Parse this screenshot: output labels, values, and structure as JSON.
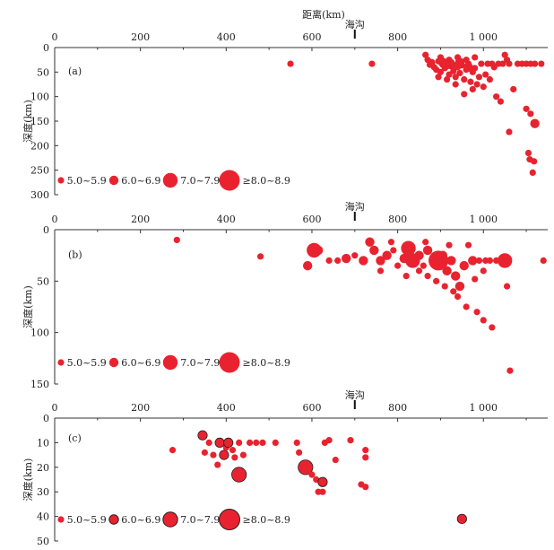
{
  "figure": {
    "top_axis_label": "距离(km)",
    "trench_label": "海沟",
    "trench_x": 700,
    "y_axis_label": "深度(km)",
    "marker_color": "#e8232f",
    "marker_edge_c": "#222222"
  },
  "chart_data": [
    {
      "type": "scatter",
      "panel_label": "(a)",
      "xlim": [
        0,
        1150
      ],
      "ylim": [
        0,
        300
      ],
      "x_ticks": [
        "0",
        "200",
        "400",
        "600",
        "800",
        "1 000"
      ],
      "x_tick_values": [
        0,
        200,
        400,
        600,
        800,
        1000
      ],
      "y_ticks": [
        "0",
        "50",
        "100",
        "150",
        "200",
        "250",
        "300"
      ],
      "y_tick_values": [
        0,
        50,
        100,
        150,
        200,
        250,
        300
      ],
      "xlabel": "距离(km)",
      "ylabel": "深度(km)",
      "legend_position": "bottom-left",
      "legend": [
        {
          "label": "5.0~5.9",
          "mag": 5.5
        },
        {
          "label": "6.0~6.9",
          "mag": 6.5
        },
        {
          "label": "7.0~7.9",
          "mag": 7.5
        },
        {
          "label": "≥8.0~8.9",
          "mag": 8.5
        }
      ],
      "points": [
        [
          550,
          33,
          5.5
        ],
        [
          740,
          33,
          5.5
        ],
        [
          865,
          15,
          5.5
        ],
        [
          870,
          25,
          5.5
        ],
        [
          875,
          35,
          5.5
        ],
        [
          880,
          30,
          5.5
        ],
        [
          885,
          40,
          5.5
        ],
        [
          890,
          45,
          5.5
        ],
        [
          895,
          28,
          5.5
        ],
        [
          900,
          50,
          5.5
        ],
        [
          905,
          35,
          5.5
        ],
        [
          910,
          42,
          5.5
        ],
        [
          915,
          38,
          5.5
        ],
        [
          920,
          55,
          5.5
        ],
        [
          925,
          30,
          5.5
        ],
        [
          930,
          48,
          5.5
        ],
        [
          935,
          60,
          5.5
        ],
        [
          940,
          40,
          5.5
        ],
        [
          945,
          52,
          5.5
        ],
        [
          950,
          36,
          5.5
        ],
        [
          955,
          65,
          5.5
        ],
        [
          960,
          45,
          5.5
        ],
        [
          965,
          33,
          5.5
        ],
        [
          970,
          70,
          5.5
        ],
        [
          975,
          50,
          5.5
        ],
        [
          980,
          42,
          5.5
        ],
        [
          985,
          75,
          5.5
        ],
        [
          990,
          60,
          5.5
        ],
        [
          995,
          33,
          5.5
        ],
        [
          1000,
          80,
          5.5
        ],
        [
          1005,
          55,
          5.5
        ],
        [
          1010,
          33,
          5.5
        ],
        [
          1015,
          65,
          5.5
        ],
        [
          1020,
          33,
          5.5
        ],
        [
          1025,
          40,
          5.5
        ],
        [
          1030,
          100,
          5.5
        ],
        [
          1035,
          33,
          5.5
        ],
        [
          1040,
          110,
          5.5
        ],
        [
          1045,
          33,
          5.5
        ],
        [
          1050,
          15,
          5.5
        ],
        [
          1055,
          25,
          5.5
        ],
        [
          1060,
          33,
          5.5
        ],
        [
          1070,
          85,
          5.5
        ],
        [
          1080,
          33,
          5.5
        ],
        [
          1090,
          33,
          5.5
        ],
        [
          1100,
          33,
          5.5
        ],
        [
          1110,
          33,
          5.5
        ],
        [
          1120,
          33,
          5.5
        ],
        [
          1135,
          33,
          5.5
        ],
        [
          900,
          20,
          5.5
        ],
        [
          920,
          25,
          5.5
        ],
        [
          940,
          20,
          5.5
        ],
        [
          960,
          25,
          5.5
        ],
        [
          980,
          20,
          5.5
        ],
        [
          895,
          60,
          5.5
        ],
        [
          915,
          65,
          5.5
        ],
        [
          935,
          75,
          5.5
        ],
        [
          955,
          95,
          5.5
        ],
        [
          975,
          85,
          5.5
        ],
        [
          925,
          35,
          6.5
        ],
        [
          945,
          30,
          6.5
        ],
        [
          965,
          40,
          6.5
        ],
        [
          905,
          30,
          6.5
        ],
        [
          1060,
          172,
          5.5
        ],
        [
          1100,
          125,
          5.5
        ],
        [
          1110,
          135,
          5.5
        ],
        [
          1105,
          215,
          5.5
        ],
        [
          1108,
          228,
          5.5
        ],
        [
          1118,
          232,
          5.5
        ],
        [
          1115,
          255,
          5.5
        ],
        [
          1120,
          155,
          6.5
        ]
      ]
    },
    {
      "type": "scatter",
      "panel_label": "(b)",
      "xlim": [
        0,
        1150
      ],
      "ylim": [
        0,
        150
      ],
      "x_ticks": [
        "0",
        "200",
        "400",
        "600",
        "800",
        "1 000"
      ],
      "x_tick_values": [
        0,
        200,
        400,
        600,
        800,
        1000
      ],
      "y_ticks": [
        "0",
        "50",
        "100",
        "150"
      ],
      "y_tick_values": [
        0,
        50,
        100,
        150
      ],
      "xlabel": "距离(km)",
      "ylabel": "深度(km)",
      "legend_position": "bottom-left",
      "legend": [
        {
          "label": "5.0~5.9",
          "mag": 5.5
        },
        {
          "label": "6.0~6.9",
          "mag": 6.5
        },
        {
          "label": "7.0~7.9",
          "mag": 7.5
        },
        {
          "label": "≥8.0~8.9",
          "mag": 8.5
        }
      ],
      "points": [
        [
          285,
          10,
          5.5
        ],
        [
          480,
          26,
          5.5
        ],
        [
          590,
          35,
          6.5
        ],
        [
          605,
          20,
          7.5
        ],
        [
          615,
          20,
          6.5
        ],
        [
          640,
          30,
          5.5
        ],
        [
          660,
          30,
          5.5
        ],
        [
          680,
          28,
          6.5
        ],
        [
          700,
          25,
          5.5
        ],
        [
          720,
          30,
          6.5
        ],
        [
          735,
          12,
          6.5
        ],
        [
          745,
          20,
          6.5
        ],
        [
          760,
          30,
          6.5
        ],
        [
          775,
          25,
          6.5
        ],
        [
          790,
          20,
          5.5
        ],
        [
          800,
          35,
          5.5
        ],
        [
          815,
          28,
          6.5
        ],
        [
          825,
          18,
          7.5
        ],
        [
          835,
          30,
          7.5
        ],
        [
          850,
          25,
          6.5
        ],
        [
          860,
          35,
          5.5
        ],
        [
          870,
          20,
          6.5
        ],
        [
          880,
          30,
          5.5
        ],
        [
          895,
          30,
          8.5
        ],
        [
          905,
          25,
          6.5
        ],
        [
          915,
          40,
          6.5
        ],
        [
          925,
          30,
          6.5
        ],
        [
          935,
          45,
          6.5
        ],
        [
          945,
          55,
          6.5
        ],
        [
          955,
          35,
          6.5
        ],
        [
          960,
          75,
          5.5
        ],
        [
          975,
          30,
          6.5
        ],
        [
          985,
          80,
          5.5
        ],
        [
          990,
          30,
          5.5
        ],
        [
          1000,
          88,
          5.5
        ],
        [
          1005,
          30,
          5.5
        ],
        [
          1015,
          30,
          5.5
        ],
        [
          1020,
          95,
          5.5
        ],
        [
          1030,
          30,
          5.5
        ],
        [
          1040,
          30,
          5.5
        ],
        [
          1050,
          30,
          7.5
        ],
        [
          1055,
          55,
          5.5
        ],
        [
          1062,
          137,
          5.5
        ],
        [
          1140,
          30,
          5.5
        ],
        [
          870,
          45,
          5.5
        ],
        [
          890,
          50,
          5.5
        ],
        [
          910,
          55,
          5.5
        ],
        [
          930,
          60,
          5.5
        ],
        [
          940,
          65,
          5.5
        ],
        [
          760,
          40,
          5.5
        ],
        [
          820,
          45,
          5.5
        ],
        [
          850,
          40,
          5.5
        ],
        [
          920,
          15,
          5.5
        ],
        [
          965,
          15,
          5.5
        ],
        [
          980,
          48,
          5.5
        ],
        [
          1000,
          40,
          5.5
        ],
        [
          865,
          12,
          5.5
        ],
        [
          785,
          12,
          5.5
        ]
      ]
    },
    {
      "type": "scatter",
      "panel_label": "(c)",
      "xlim": [
        0,
        1150
      ],
      "ylim": [
        0,
        50
      ],
      "x_ticks": [
        "0",
        "200",
        "400",
        "600",
        "800",
        "1 000"
      ],
      "x_tick_values": [
        0,
        200,
        400,
        600,
        800,
        1000
      ],
      "y_ticks": [
        "0",
        "10",
        "20",
        "30",
        "40",
        "50"
      ],
      "y_tick_values": [
        0,
        10,
        20,
        30,
        40,
        50
      ],
      "xlabel": "距离(km)",
      "ylabel": "深度(km)",
      "legend_position": "bottom-left",
      "legend": [
        {
          "label": "5.0~5.9",
          "mag": 5.5
        },
        {
          "label": "6.0~6.9",
          "mag": 6.5
        },
        {
          "label": "7.0~7.9",
          "mag": 7.5
        },
        {
          "label": "≥8.0~8.9",
          "mag": 8.5
        }
      ],
      "points": [
        [
          275,
          13,
          5.5
        ],
        [
          345,
          7,
          6.5
        ],
        [
          350,
          14,
          5.5
        ],
        [
          360,
          10,
          5.5
        ],
        [
          370,
          15,
          5.5
        ],
        [
          380,
          19,
          5.5
        ],
        [
          385,
          10,
          6.5
        ],
        [
          395,
          15,
          6.5
        ],
        [
          400,
          12,
          5.5
        ],
        [
          405,
          10,
          6.5
        ],
        [
          415,
          13,
          5.5
        ],
        [
          420,
          16,
          5.5
        ],
        [
          430,
          10,
          5.5
        ],
        [
          430,
          23,
          7.5
        ],
        [
          440,
          15,
          5.5
        ],
        [
          455,
          10,
          5.5
        ],
        [
          470,
          10,
          5.5
        ],
        [
          485,
          10,
          5.5
        ],
        [
          515,
          10,
          5.5
        ],
        [
          565,
          10,
          5.5
        ],
        [
          570,
          14,
          5.5
        ],
        [
          585,
          20,
          7.5
        ],
        [
          600,
          23,
          5.5
        ],
        [
          610,
          25,
          5.5
        ],
        [
          615,
          30,
          5.5
        ],
        [
          625,
          26,
          6.5
        ],
        [
          625,
          30,
          5.5
        ],
        [
          630,
          10,
          5.5
        ],
        [
          640,
          9,
          5.5
        ],
        [
          655,
          17,
          5.5
        ],
        [
          690,
          9,
          5.5
        ],
        [
          715,
          27,
          5.5
        ],
        [
          725,
          28,
          5.5
        ],
        [
          725,
          13,
          5.5
        ],
        [
          725,
          16,
          5.5
        ],
        [
          950,
          41,
          6.5
        ]
      ]
    }
  ]
}
